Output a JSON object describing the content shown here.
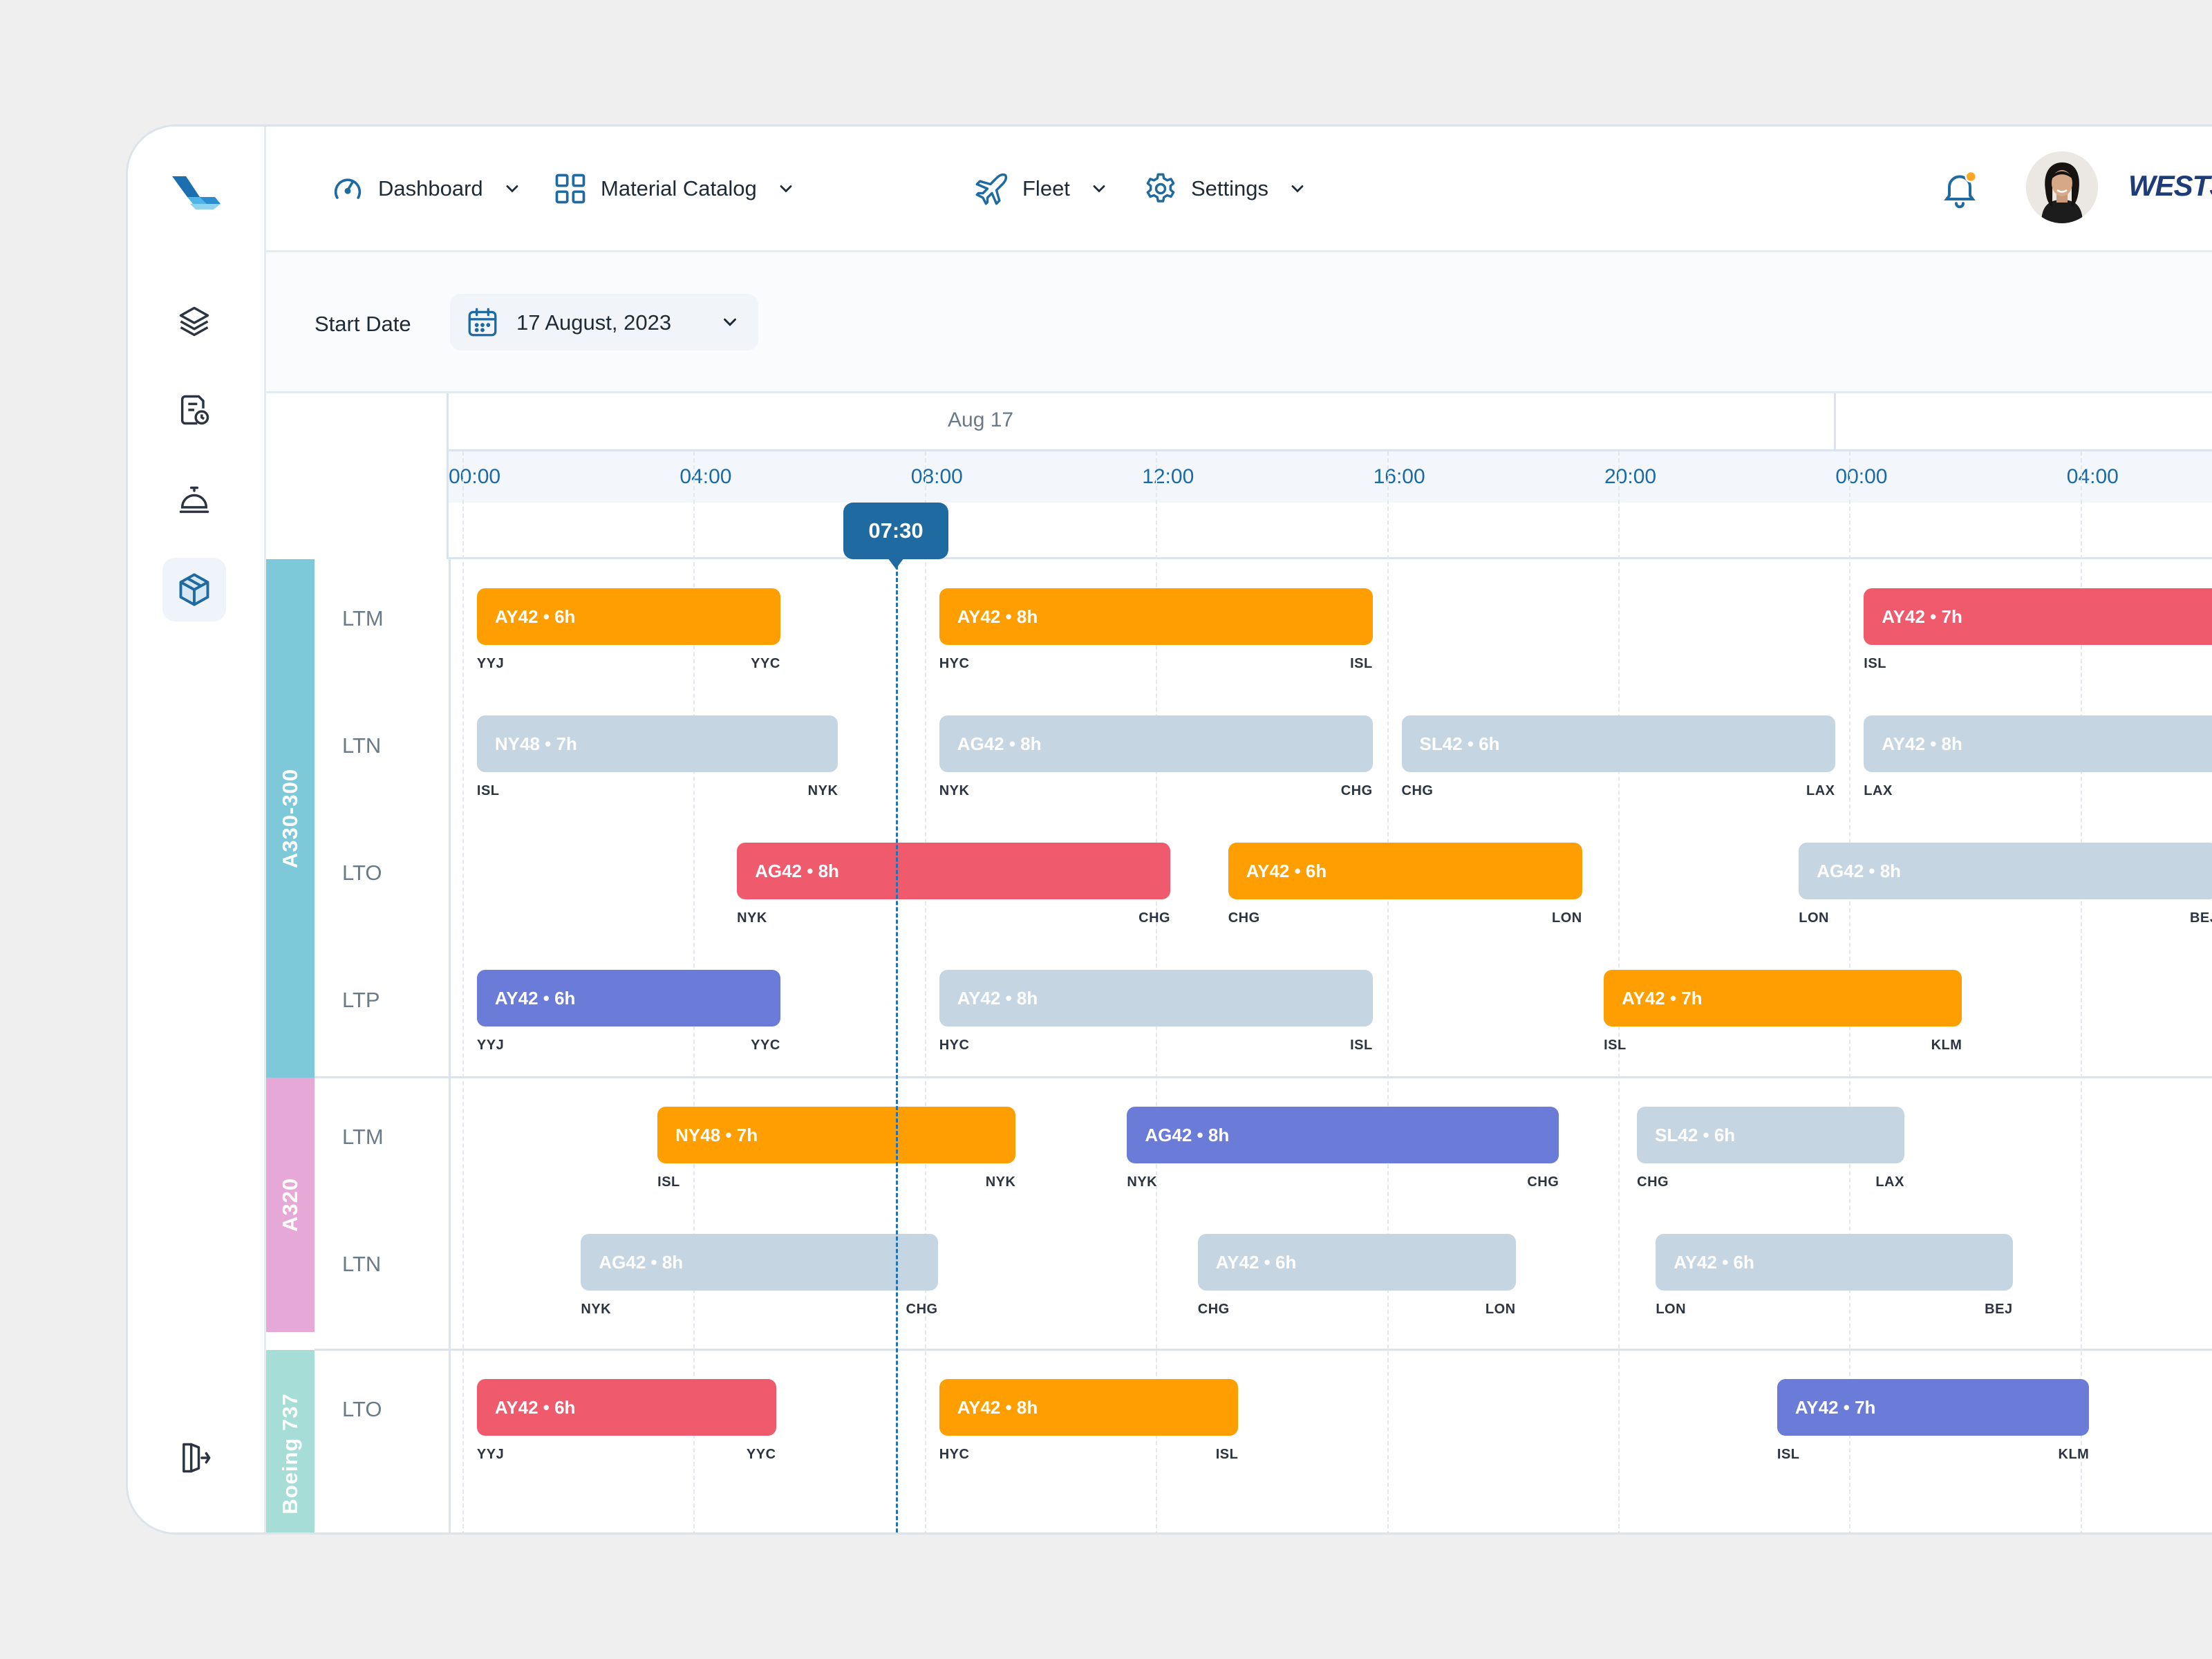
{
  "nav": {
    "items": [
      {
        "id": "dashboard",
        "label": "Dashboard",
        "icon": "speedometer-icon"
      },
      {
        "id": "catalog",
        "label": "Material Catalog",
        "icon": "grid-icon"
      },
      {
        "id": "fleet",
        "label": "Fleet",
        "icon": "airplane-icon"
      },
      {
        "id": "settings",
        "label": "Settings",
        "icon": "gear-icon"
      }
    ]
  },
  "brand": {
    "name": "WESTJET"
  },
  "filter": {
    "start_label": "Start Date",
    "date_value": "17 August, 2023"
  },
  "timeline": {
    "day_label": "Aug 17",
    "hours": [
      "00:00",
      "04:00",
      "08:00",
      "12:00",
      "16:00",
      "20:00",
      "00:00",
      "04:00"
    ],
    "now_label": "07:30",
    "groups": [
      {
        "name": "A330-300",
        "color": "#7ec9d9",
        "rows": [
          {
            "label": "LTM",
            "flights": [
              {
                "text": "AY42 • 6h",
                "from": "YYJ",
                "to": "YYC",
                "color": "orange",
                "start": 0.25,
                "end": 5.5
              },
              {
                "text": "AY42 • 8h",
                "from": "HYC",
                "to": "ISL",
                "color": "orange",
                "start": 8.25,
                "end": 15.75
              },
              {
                "text": "AY42 • 7h",
                "from": "ISL",
                "to": "",
                "color": "red",
                "start": 24.25,
                "end": 31.5
              }
            ]
          },
          {
            "label": "LTN",
            "flights": [
              {
                "text": "NY48 • 7h",
                "from": "ISL",
                "to": "NYK",
                "color": "grey",
                "start": 0.25,
                "end": 6.5
              },
              {
                "text": "AG42 • 8h",
                "from": "NYK",
                "to": "CHG",
                "color": "grey",
                "start": 8.25,
                "end": 15.75
              },
              {
                "text": "SL42 • 6h",
                "from": "CHG",
                "to": "LAX",
                "color": "grey",
                "start": 16.25,
                "end": 23.75
              },
              {
                "text": "AY42 • 8h",
                "from": "LAX",
                "to": "",
                "color": "grey",
                "start": 24.25,
                "end": 31.5
              }
            ]
          },
          {
            "label": "LTO",
            "flights": [
              {
                "text": "AG42 • 8h",
                "from": "NYK",
                "to": "CHG",
                "color": "red",
                "start": 4.75,
                "end": 12.25
              },
              {
                "text": "AY42 • 6h",
                "from": "CHG",
                "to": "LON",
                "color": "orange",
                "start": 13.25,
                "end": 19.375
              },
              {
                "text": "AG42 • 8h",
                "from": "LON",
                "to": "BEJ",
                "color": "grey",
                "start": 23.125,
                "end": 30.375
              }
            ]
          },
          {
            "label": "LTP",
            "flights": [
              {
                "text": "AY42 • 6h",
                "from": "YYJ",
                "to": "YYC",
                "color": "blue",
                "start": 0.25,
                "end": 5.5
              },
              {
                "text": "AY42 • 8h",
                "from": "HYC",
                "to": "ISL",
                "color": "grey",
                "start": 8.25,
                "end": 15.75
              },
              {
                "text": "AY42 • 7h",
                "from": "ISL",
                "to": "KLM",
                "color": "orange",
                "start": 19.75,
                "end": 25.95
              }
            ]
          }
        ]
      },
      {
        "name": "A320",
        "color": "#e6a8d6",
        "rows": [
          {
            "label": "LTM",
            "flights": [
              {
                "text": "NY48 • 7h",
                "from": "ISL",
                "to": "NYK",
                "color": "orange",
                "start": 3.375,
                "end": 9.575
              },
              {
                "text": "AG42 • 8h",
                "from": "NYK",
                "to": "CHG",
                "color": "blue",
                "start": 11.5,
                "end": 18.975
              },
              {
                "text": "SL42 • 6h",
                "from": "CHG",
                "to": "LAX",
                "color": "grey",
                "start": 20.325,
                "end": 24.95
              }
            ]
          },
          {
            "label": "LTN",
            "flights": [
              {
                "text": "AG42 • 8h",
                "from": "NYK",
                "to": "CHG",
                "color": "grey",
                "start": 2.05,
                "end": 8.225
              },
              {
                "text": "AY42 • 6h",
                "from": "CHG",
                "to": "LON",
                "color": "grey",
                "start": 12.725,
                "end": 18.225
              },
              {
                "text": "AY42 • 6h",
                "from": "LON",
                "to": "BEJ",
                "color": "grey",
                "start": 20.65,
                "end": 26.825
              }
            ]
          }
        ]
      },
      {
        "name": "Boeing 737",
        "color": "#a6ddd6",
        "rows": [
          {
            "label": "LTO",
            "flights": [
              {
                "text": "AY42 • 6h",
                "from": "YYJ",
                "to": "YYC",
                "color": "red",
                "start": 0.25,
                "end": 5.425
              },
              {
                "text": "AY42 • 8h",
                "from": "HYC",
                "to": "ISL",
                "color": "orange",
                "start": 8.25,
                "end": 13.425
              },
              {
                "text": "AY42 • 7h",
                "from": "ISL",
                "to": "KLM",
                "color": "blue",
                "start": 22.75,
                "end": 28.15
              }
            ]
          }
        ]
      }
    ]
  }
}
